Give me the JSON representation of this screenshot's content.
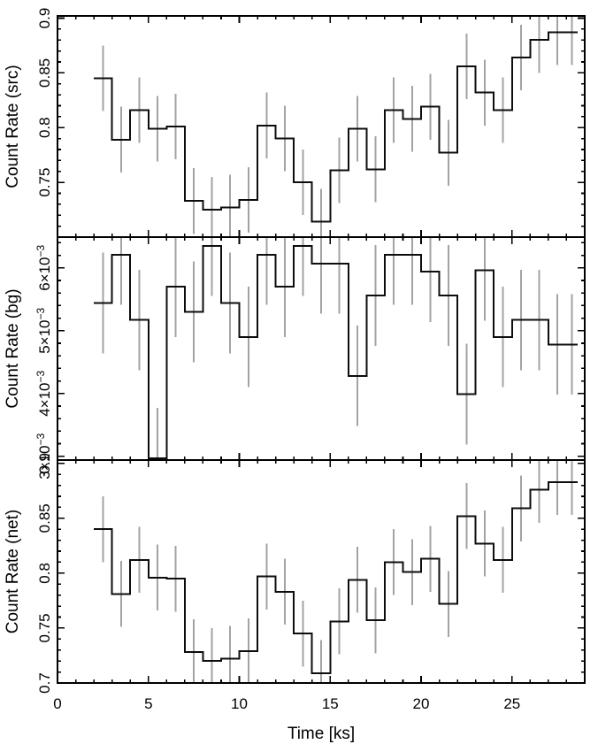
{
  "chart_data": {
    "type": "line",
    "subtype": "step-histogram-with-error-bars",
    "title": "",
    "xlabel": "Time [ks]",
    "grid": false,
    "legend": null,
    "colors": {
      "background": "#ffffff",
      "axis": "#000000",
      "step_line": "#0d0d0d",
      "error_bar": "#a3a3a3"
    },
    "x_axis": {
      "min": 0,
      "max": 29,
      "major_ticks": [
        0,
        5,
        10,
        15,
        20,
        25
      ],
      "tick_labels": [
        "0",
        "5",
        "10",
        "15",
        "20",
        "25"
      ],
      "minor_step": 1
    },
    "bin_edges": [
      2,
      3,
      4,
      5,
      6,
      7,
      8,
      9,
      10,
      11,
      12,
      13,
      14,
      15,
      16,
      17,
      18,
      19,
      20,
      21,
      22,
      23,
      24,
      25,
      26,
      27,
      28,
      28.6
    ],
    "panels": [
      {
        "name": "src",
        "ylabel": "Count Rate (src)",
        "ylim": [
          0.7,
          0.902
        ],
        "minor_step": 0.01,
        "yticks": [
          {
            "value": 0.75,
            "label": "0.75"
          },
          {
            "value": 0.8,
            "label": "0.8"
          },
          {
            "value": 0.85,
            "label": "0.85"
          },
          {
            "value": 0.9,
            "label": "0.9"
          }
        ],
        "values": [
          0.845,
          0.789,
          0.816,
          0.799,
          0.801,
          0.733,
          0.725,
          0.727,
          0.734,
          0.802,
          0.79,
          0.75,
          0.714,
          0.761,
          0.799,
          0.762,
          0.816,
          0.808,
          0.819,
          0.777,
          0.856,
          0.832,
          0.816,
          0.864,
          0.88,
          0.887,
          0.887
        ],
        "yerr": 0.03
      },
      {
        "name": "bg",
        "ylabel": "Count Rate (bg)",
        "value_unit": "1e-3",
        "ylim": [
          2.94,
          6.49
        ],
        "minor_step": 0.2,
        "yticks": [
          {
            "value": 3,
            "label": "3×10",
            "sup": "−3"
          },
          {
            "value": 4,
            "label": "4×10",
            "sup": "−3"
          },
          {
            "value": 5,
            "label": "5×10",
            "sup": "−3"
          },
          {
            "value": 6,
            "label": "6×10",
            "sup": "−3"
          }
        ],
        "values": [
          5.44,
          6.21,
          5.17,
          2.97,
          5.7,
          5.3,
          6.35,
          5.44,
          4.9,
          6.21,
          5.7,
          6.35,
          6.07,
          6.07,
          4.28,
          5.56,
          6.21,
          6.21,
          5.94,
          5.56,
          3.99,
          5.96,
          4.9,
          5.17,
          5.17,
          4.78,
          4.78
        ],
        "yerr": 0.8
      },
      {
        "name": "net",
        "ylabel": "Count Rate (net)",
        "ylim": [
          0.7,
          0.903
        ],
        "minor_step": 0.01,
        "yticks": [
          {
            "value": 0.7,
            "label": "0.7"
          },
          {
            "value": 0.75,
            "label": "0.75"
          },
          {
            "value": 0.8,
            "label": "0.8"
          },
          {
            "value": 0.85,
            "label": "0.85"
          },
          {
            "value": 0.9,
            "label": "0.9"
          }
        ],
        "values": [
          0.84,
          0.781,
          0.812,
          0.796,
          0.795,
          0.728,
          0.72,
          0.722,
          0.729,
          0.797,
          0.783,
          0.745,
          0.709,
          0.756,
          0.794,
          0.757,
          0.81,
          0.801,
          0.813,
          0.772,
          0.852,
          0.827,
          0.812,
          0.859,
          0.876,
          0.883,
          0.883
        ],
        "yerr": 0.03
      }
    ]
  }
}
